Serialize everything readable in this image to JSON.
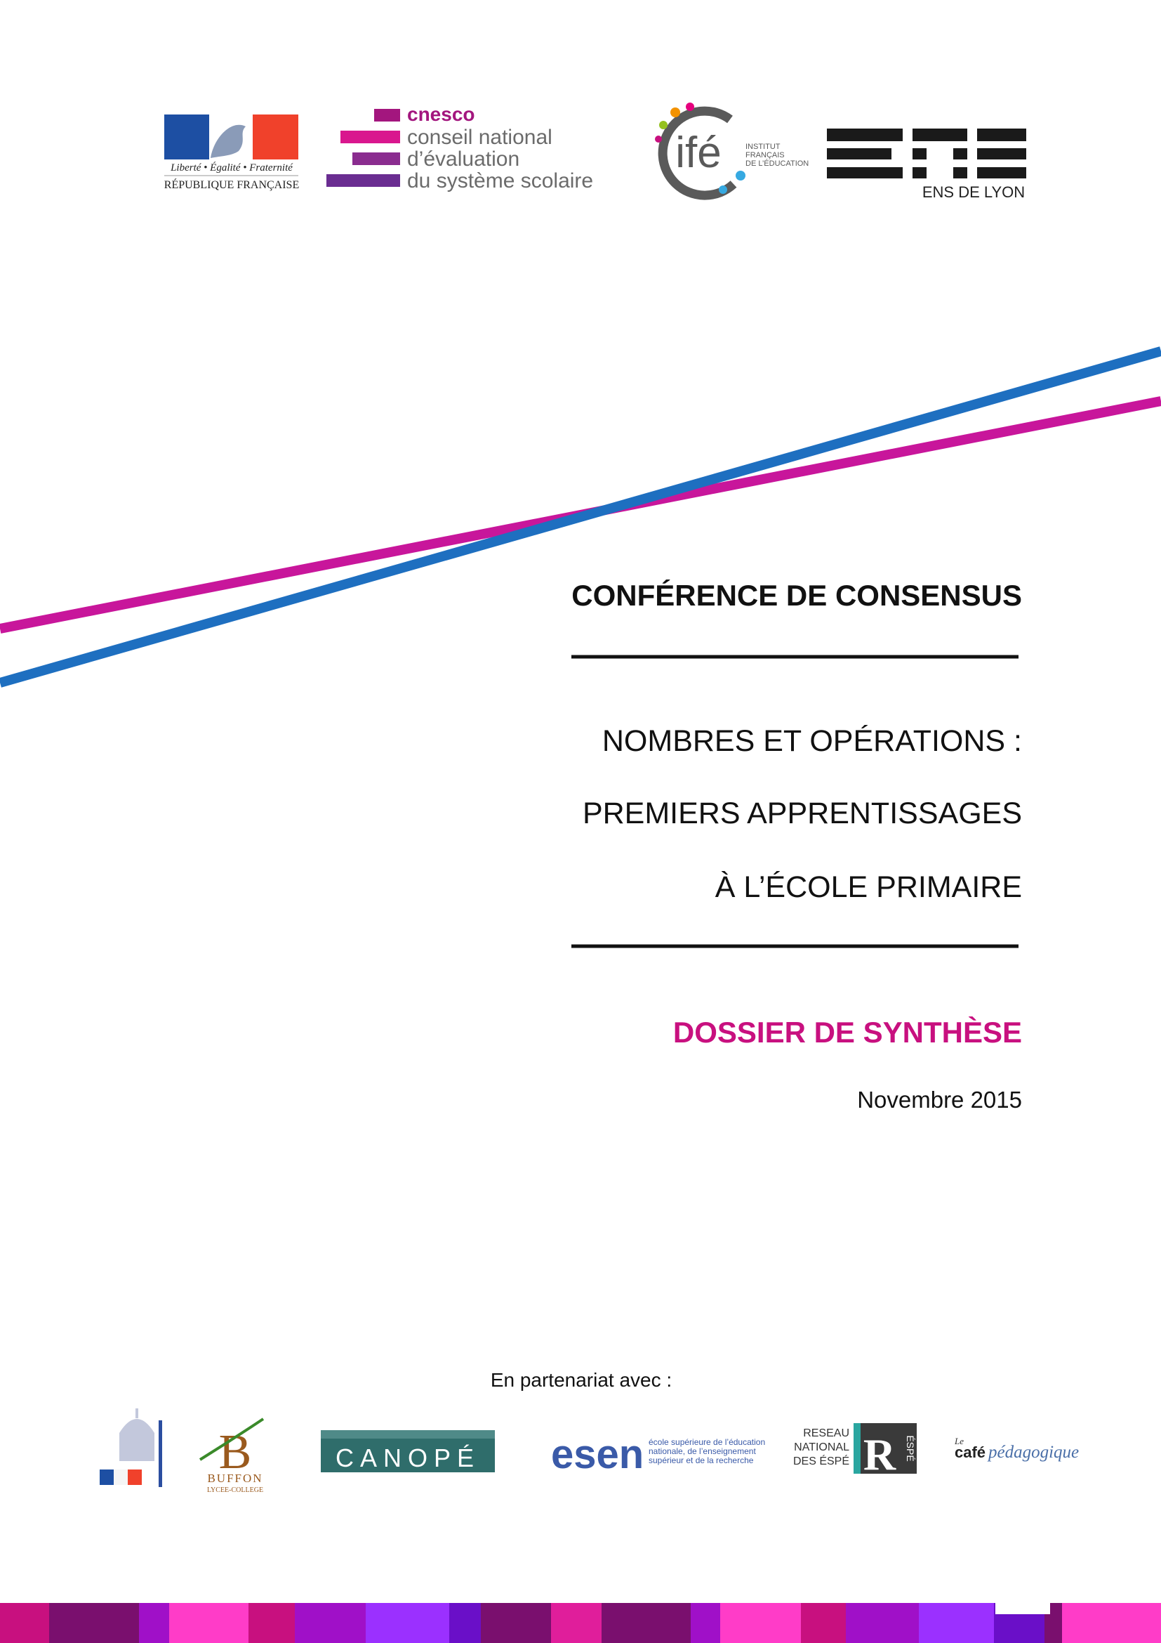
{
  "logos": {
    "republique": {
      "motto": "Liberté • Égalité • Fraternité",
      "name": "RÉPUBLIQUE FRANÇAISE"
    },
    "cnesco": {
      "acronym": "cnesco",
      "lines": [
        "conseil national",
        "d’évaluation",
        "du système scolaire"
      ]
    },
    "ife": {
      "acronym": "ifé",
      "name_lines": [
        "INSTITUT",
        "FRANÇAIS",
        "DE L’ÉDUCATION"
      ]
    },
    "ens": {
      "name": "ENS DE LYON"
    }
  },
  "cover": {
    "event": "CONFÉRENCE DE CONSENSUS",
    "title_lines": [
      "NOMBRES ET OPÉRATIONS :",
      "PREMIERS APPRENTISSAGES",
      "À L’ÉCOLE PRIMAIRE"
    ],
    "document_type": "DOSSIER DE SYNTHÈSE",
    "date": "Novembre 2015"
  },
  "partners": {
    "intro": "En partenariat avec :",
    "buffon": {
      "name": "BUFFON",
      "subtitle": "LYCEE-COLLEGE"
    },
    "canope": {
      "name": "CANOPÉ"
    },
    "esen": {
      "acronym": "esen",
      "description_lines": [
        "école supérieure de l’éducation",
        "nationale, de l’enseignement",
        "supérieur et de la recherche"
      ]
    },
    "espe": {
      "lines": [
        "RESEAU",
        "NATIONAL",
        "DES ÉSPÉ"
      ],
      "letter": "R",
      "acronym": "ÉSPÉ"
    },
    "cafe": {
      "prefix": "Le",
      "word": "café",
      "suffix": "pédagogique"
    }
  }
}
